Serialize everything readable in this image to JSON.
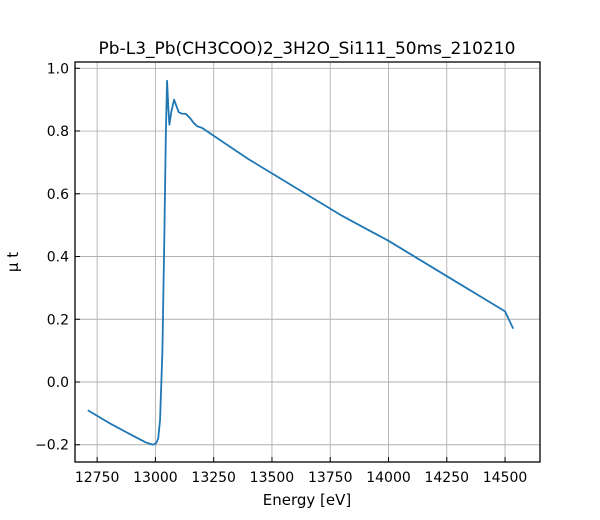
{
  "chart_data": {
    "type": "line",
    "title": "Pb-L3_Pb(CH3COO)2_3H2O_Si111_50ms_210210",
    "xlabel": "Energy [eV]",
    "ylabel": "μ t",
    "xlim": [
      12655,
      14650
    ],
    "ylim": [
      -0.255,
      1.02
    ],
    "x_ticks": [
      12750,
      13000,
      13250,
      13500,
      13750,
      14000,
      14250,
      14500
    ],
    "y_ticks": [
      -0.2,
      0.0,
      0.2,
      0.4,
      0.6,
      0.8,
      1.0
    ],
    "x_tick_labels": [
      "12750",
      "13000",
      "13250",
      "13500",
      "13750",
      "14000",
      "14250",
      "14500"
    ],
    "y_tick_labels": [
      "−0.2",
      "0.0",
      "0.2",
      "0.4",
      "0.6",
      "0.8",
      "1.0"
    ],
    "grid": true,
    "color": "#1f77b4",
    "series": [
      {
        "x": [
          12710,
          12800,
          12900,
          12960,
          12990,
          13003,
          13012,
          13020,
          13030,
          13038,
          13045,
          13050,
          13055,
          13060,
          13068,
          13080,
          13090,
          13100,
          13115,
          13130,
          13150,
          13165,
          13180,
          13200,
          13220,
          13250,
          13300,
          13400,
          13500,
          13600,
          13700,
          13800,
          13900,
          14000,
          14100,
          14200,
          14300,
          14400,
          14500,
          14535
        ],
        "y": [
          -0.09,
          -0.13,
          -0.17,
          -0.193,
          -0.2,
          -0.195,
          -0.18,
          -0.12,
          0.1,
          0.45,
          0.8,
          0.96,
          0.88,
          0.82,
          0.86,
          0.9,
          0.88,
          0.86,
          0.855,
          0.855,
          0.84,
          0.825,
          0.815,
          0.81,
          0.8,
          0.785,
          0.76,
          0.71,
          0.665,
          0.62,
          0.575,
          0.53,
          0.49,
          0.45,
          0.405,
          0.36,
          0.315,
          0.27,
          0.225,
          0.17
        ]
      }
    ]
  }
}
